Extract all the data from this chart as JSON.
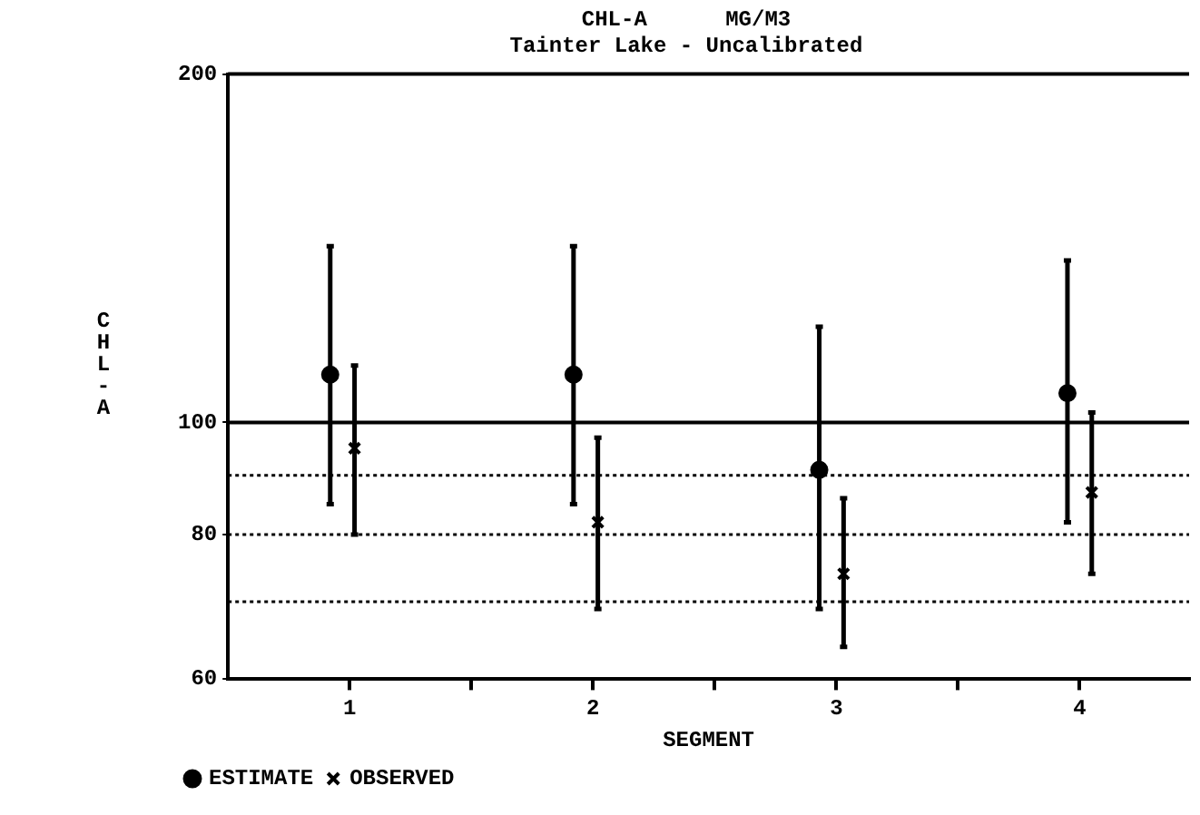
{
  "chart_data": {
    "type": "scatter",
    "title": "CHL-A      MG/M3",
    "subtitle": "Tainter Lake - Uncalibrated",
    "xlabel": "SEGMENT",
    "ylabel": "CHL-A",
    "log": "y",
    "xlim": [
      0.5,
      4.45
    ],
    "xticks": [
      1,
      {
        "value": 1.5,
        "label": null
      },
      2,
      {
        "value": 2.5,
        "label": null
      },
      3,
      {
        "value": 3.5,
        "label": null
      },
      4
    ],
    "ylim": [
      60,
      200
    ],
    "yticks": [
      60,
      80,
      100,
      200
    ],
    "grid": false,
    "legend": "bottom left",
    "ref_lines": [
      {
        "axis": "y",
        "value": 70,
        "line_style": "dotted",
        "color": "#000000"
      },
      {
        "axis": "y",
        "value": 80,
        "line_style": "dotted",
        "color": "#000000"
      },
      {
        "axis": "y",
        "value": 90,
        "line_style": "dotted",
        "color": "#000000"
      },
      {
        "axis": "y",
        "value": 100,
        "line_style": "solid",
        "color": "#000000"
      }
    ],
    "series": [
      {
        "name": "ESTIMATE",
        "color": "#000000",
        "marker": "circle",
        "x": [
          0.92,
          1.92,
          2.93,
          3.95
        ],
        "values": [
          110,
          110,
          91,
          106
        ],
        "errors": [
          [
            85,
            142
          ],
          [
            85,
            142
          ],
          [
            69,
            121
          ],
          [
            82,
            138
          ]
        ]
      },
      {
        "name": "OBSERVED",
        "color": "#000000",
        "marker": "cross",
        "x": [
          1.02,
          2.02,
          3.03,
          4.05
        ],
        "values": [
          95,
          82,
          74,
          87
        ],
        "errors": [
          [
            80,
            112
          ],
          [
            69,
            97
          ],
          [
            64,
            86
          ],
          [
            74,
            102
          ]
        ]
      }
    ]
  }
}
